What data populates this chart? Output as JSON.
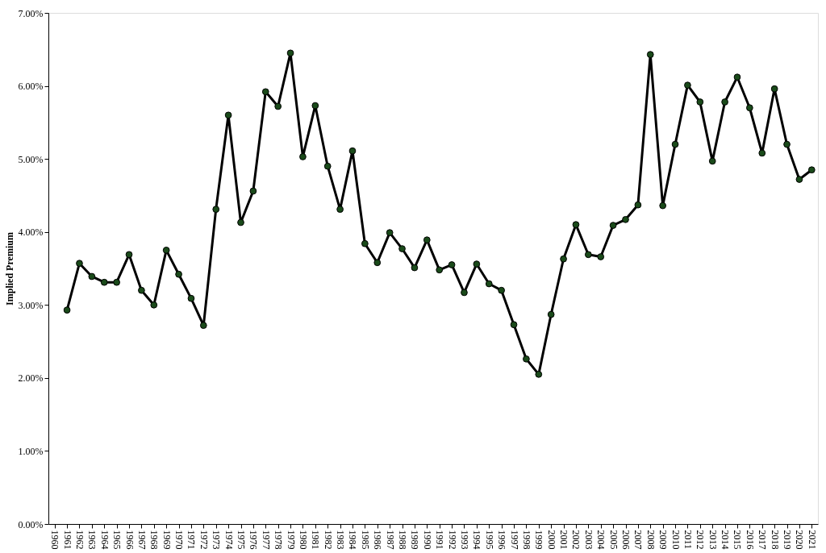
{
  "chart_data": {
    "type": "line",
    "ylabel": "Implied Premium",
    "categories": [
      "1960",
      "1961",
      "1962",
      "1963",
      "1964",
      "1965",
      "1966",
      "1967",
      "1968",
      "1969",
      "1970",
      "1971",
      "1972",
      "1973",
      "1974",
      "1975",
      "1976",
      "1977",
      "1978",
      "1979",
      "1980",
      "1981",
      "1982",
      "1983",
      "1984",
      "1985",
      "1986",
      "1987",
      "1988",
      "1989",
      "1990",
      "1991",
      "1992",
      "1993",
      "1994",
      "1995",
      "1996",
      "1997",
      "1998",
      "1999",
      "2000",
      "2001",
      "2002",
      "2003",
      "2004",
      "2005",
      "2006",
      "2007",
      "2008",
      "2009",
      "2010",
      "2011",
      "2012",
      "2013",
      "2014",
      "2015",
      "2016",
      "2017",
      "2018",
      "2019",
      "2020",
      "2021"
    ],
    "series": [
      {
        "color": "#000000",
        "values": [
          null,
          2.93,
          3.57,
          3.39,
          3.31,
          3.31,
          3.69,
          3.2,
          3.0,
          3.75,
          3.42,
          3.09,
          2.72,
          4.31,
          5.6,
          4.13,
          4.56,
          5.92,
          5.72,
          6.45,
          5.03,
          5.73,
          4.9,
          4.31,
          5.11,
          3.84,
          3.58,
          3.99,
          3.77,
          3.51,
          3.89,
          3.48,
          3.55,
          3.17,
          3.56,
          3.29,
          3.2,
          2.73,
          2.26,
          2.05,
          2.87,
          3.63,
          4.1,
          3.69,
          3.66,
          4.09,
          4.17,
          4.37,
          6.43,
          4.36,
          5.2,
          6.01,
          5.78,
          4.97,
          5.78,
          6.12,
          5.7,
          5.08,
          5.96,
          5.2,
          4.72,
          4.85
        ]
      }
    ],
    "ylim": [
      0,
      7
    ],
    "yticks": [
      {
        "value": 0,
        "label": "0.00%"
      },
      {
        "value": 1,
        "label": "1.00%"
      },
      {
        "value": 2,
        "label": "2.00%"
      },
      {
        "value": 3,
        "label": "3.00%"
      },
      {
        "value": 4,
        "label": "4.00%"
      },
      {
        "value": 5,
        "label": "5.00%"
      },
      {
        "value": 6,
        "label": "6.00%"
      },
      {
        "value": 7,
        "label": "7.00%"
      }
    ],
    "marker": "circle",
    "line_style": "solid",
    "grid": false
  }
}
